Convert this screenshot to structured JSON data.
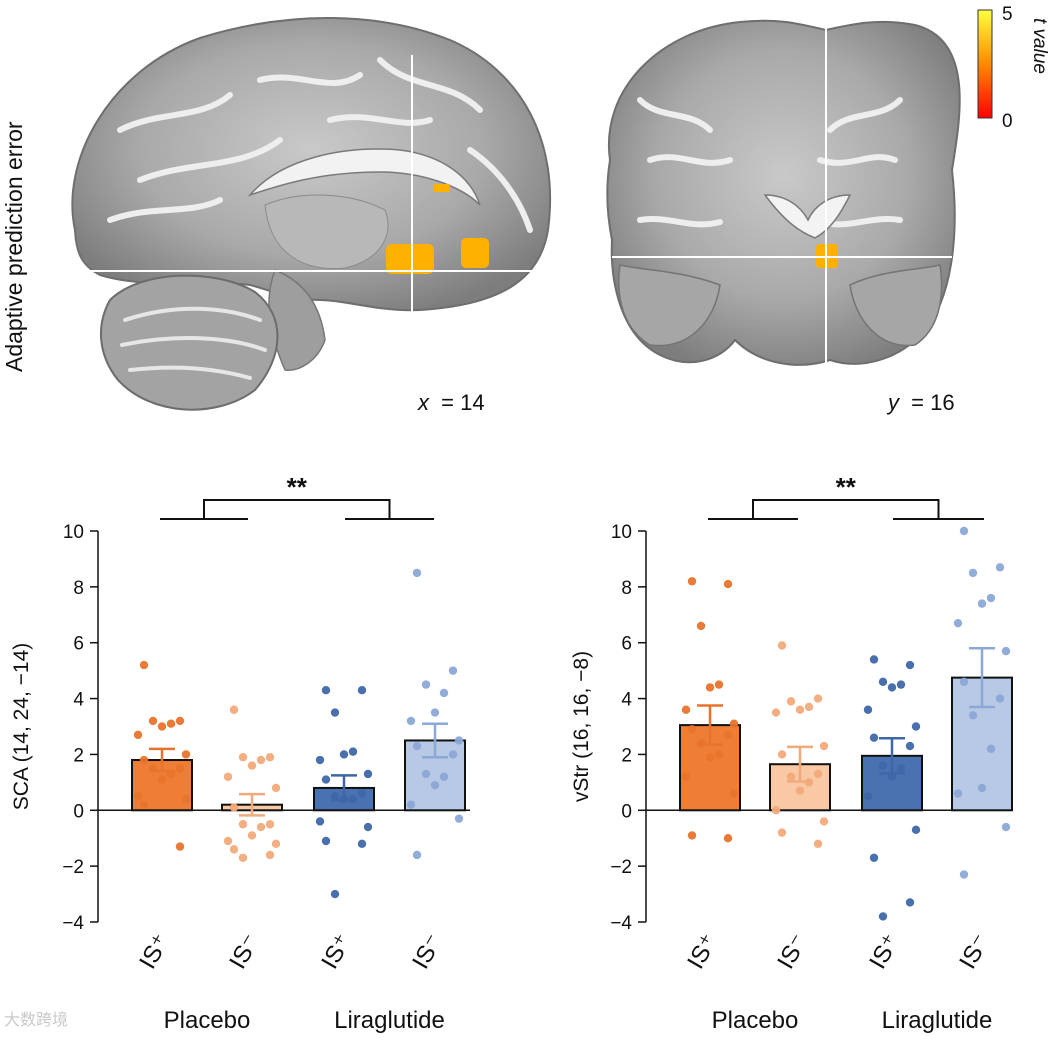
{
  "figure": {
    "row_label": "Adaptive prediction error",
    "colorbar": {
      "label": "t value",
      "max": "5",
      "min": "0",
      "colors": [
        "#ff0000",
        "#ff8a00",
        "#ffff40"
      ]
    },
    "brain_views": [
      {
        "name": "sagittal",
        "coord_var": "x",
        "coord_value": "= 14"
      },
      {
        "name": "coronal",
        "coord_var": "y",
        "coord_value": "= 16"
      }
    ],
    "watermark": "大数跨境"
  },
  "chart_data": [
    {
      "type": "bar",
      "ylabel": "SCA (14, 24, −14)",
      "ylim": [
        -4,
        10
      ],
      "yticks": [
        "−4",
        "−2",
        "0",
        "2",
        "4",
        "6",
        "8",
        "10"
      ],
      "ytick_values": [
        -4,
        -2,
        0,
        2,
        4,
        6,
        8,
        10
      ],
      "categories": [
        "IS⁺",
        "IS⁻",
        "IS⁺",
        "IS⁻"
      ],
      "groups": [
        "Placebo",
        "Liraglutide"
      ],
      "significance": "**",
      "values": [
        1.8,
        0.2,
        0.8,
        2.5
      ],
      "sem": [
        0.4,
        0.38,
        0.45,
        0.6
      ],
      "colors": [
        "#ee7d35",
        "#f9c8a4",
        "#4a72b0",
        "#b7c9e5"
      ],
      "dot_colors": [
        "#e8742c",
        "#f2aa7a",
        "#3f67a8",
        "#8ba8d6"
      ],
      "points": [
        [
          5.2,
          3.2,
          3.2,
          3.1,
          3.0,
          2.7,
          2.0,
          1.8,
          1.5,
          1.5,
          1.3,
          1.1,
          0.5,
          0.4,
          0.2,
          -1.3
        ],
        [
          3.6,
          1.9,
          1.9,
          1.8,
          1.6,
          1.2,
          0.8,
          0.1,
          -0.5,
          -0.5,
          -0.6,
          -0.9,
          -1.1,
          -1.2,
          -1.4,
          -1.6,
          -1.7
        ],
        [
          4.3,
          4.3,
          3.5,
          2.1,
          2.0,
          1.8,
          1.3,
          1.1,
          0.6,
          0.5,
          0.4,
          0.4,
          -0.4,
          -0.6,
          -1.1,
          -1.2,
          -3.0
        ],
        [
          8.5,
          5.0,
          4.5,
          4.2,
          3.5,
          3.2,
          2.5,
          2.3,
          2.0,
          1.3,
          1.2,
          0.9,
          0.2,
          -0.3,
          -1.6
        ]
      ]
    },
    {
      "type": "bar",
      "ylabel": "vStr (16, 16, −8)",
      "ylim": [
        -4,
        10
      ],
      "yticks": [
        "−4",
        "−2",
        "0",
        "2",
        "4",
        "6",
        "8",
        "10"
      ],
      "ytick_values": [
        -4,
        -2,
        0,
        2,
        4,
        6,
        8,
        10
      ],
      "categories": [
        "IS⁺",
        "IS⁻",
        "IS⁺",
        "IS⁻"
      ],
      "groups": [
        "Placebo",
        "Liraglutide"
      ],
      "significance": "**",
      "values": [
        3.05,
        1.65,
        1.95,
        4.75
      ],
      "sem": [
        0.7,
        0.62,
        0.63,
        1.05
      ],
      "colors": [
        "#ee7d35",
        "#f9c8a4",
        "#4a72b0",
        "#b7c9e5"
      ],
      "dot_colors": [
        "#e8742c",
        "#f2aa7a",
        "#3f67a8",
        "#8ba8d6"
      ],
      "points": [
        [
          8.2,
          8.1,
          6.6,
          4.5,
          4.4,
          3.6,
          3.1,
          2.9,
          2.7,
          2.4,
          2.0,
          1.9,
          1.2,
          0.6,
          -0.9,
          -1.0
        ],
        [
          5.9,
          4.0,
          3.9,
          3.7,
          3.6,
          3.5,
          2.3,
          2.0,
          1.3,
          1.2,
          1.0,
          0.7,
          0.0,
          -0.4,
          -0.8,
          -1.2
        ],
        [
          5.4,
          5.2,
          4.6,
          4.5,
          4.4,
          3.6,
          3.0,
          2.6,
          2.3,
          1.6,
          1.5,
          1.2,
          0.5,
          -0.7,
          -1.7,
          -3.3,
          -3.8
        ],
        [
          10.0,
          8.7,
          8.5,
          7.6,
          7.4,
          6.7,
          5.7,
          4.6,
          4.0,
          3.4,
          2.2,
          0.8,
          0.6,
          -0.6,
          -2.3
        ]
      ]
    }
  ]
}
